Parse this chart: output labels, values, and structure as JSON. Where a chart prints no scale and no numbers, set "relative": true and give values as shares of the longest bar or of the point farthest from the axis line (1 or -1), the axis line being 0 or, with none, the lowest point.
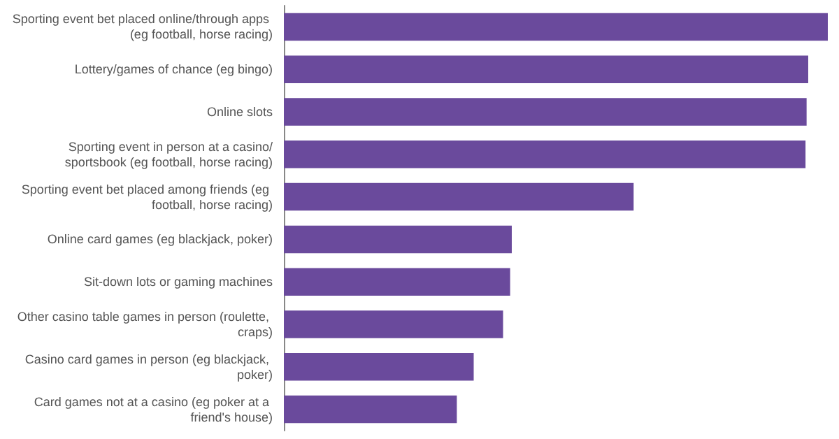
{
  "chart_data": {
    "type": "bar",
    "orientation": "horizontal",
    "relative": true,
    "color": "#6a4a9c",
    "categories": [
      "Sporting event bet placed online/through apps (eg football, horse racing)",
      "Lottery/games of chance (eg bingo)",
      "Online slots",
      "Sporting event in person at a casino/sportsbook (eg football, horse racing)",
      "Sporting event bet placed among friends (eg football, horse racing)",
      "Online card games (eg blackjack, poker)",
      "Sit-down lots or gaming machines",
      "Other casino table games in person (roulette, craps)",
      "Casino card games in person (eg blackjack, poker)",
      "Card games not at a casino (eg poker at a friend's house)"
    ],
    "values": [
      1,
      0.964,
      0.961,
      0.959,
      0.643,
      0.419,
      0.416,
      0.403,
      0.349,
      0.318
    ]
  }
}
